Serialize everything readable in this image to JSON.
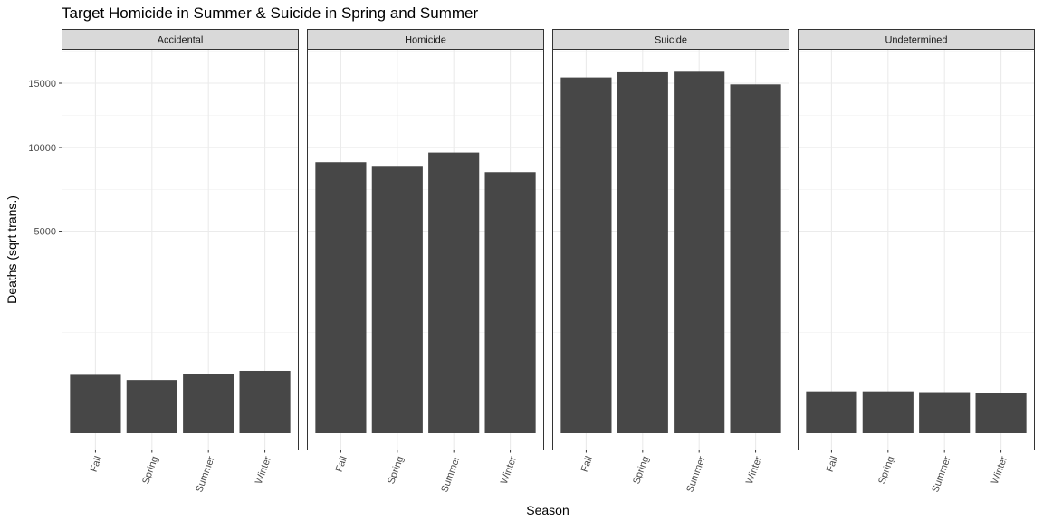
{
  "chart_data": {
    "type": "bar",
    "title": "Target Homicide in Summer & Suicide in Spring and Summer",
    "xlabel": "Season",
    "ylabel": "Deaths (sqrt trans.)",
    "y_scale": "sqrt",
    "y_ticks": [
      5000,
      10000,
      15000
    ],
    "y_tick_labels": [
      "5000",
      "10000",
      "15000"
    ],
    "ylim": [
      0,
      17000
    ],
    "grid": true,
    "categories": [
      "Fall",
      "Spring",
      "Summer",
      "Winter"
    ],
    "bar_color": "#474747",
    "facets": [
      {
        "name": "Accidental",
        "values": [
          418,
          347,
          433,
          477
        ]
      },
      {
        "name": "Homicide",
        "values": [
          9000,
          8700,
          9650,
          8350
        ]
      },
      {
        "name": "Suicide",
        "values": [
          15500,
          15950,
          16000,
          14900
        ]
      },
      {
        "name": "Undetermined",
        "values": [
          215,
          215,
          207,
          195
        ]
      }
    ]
  }
}
